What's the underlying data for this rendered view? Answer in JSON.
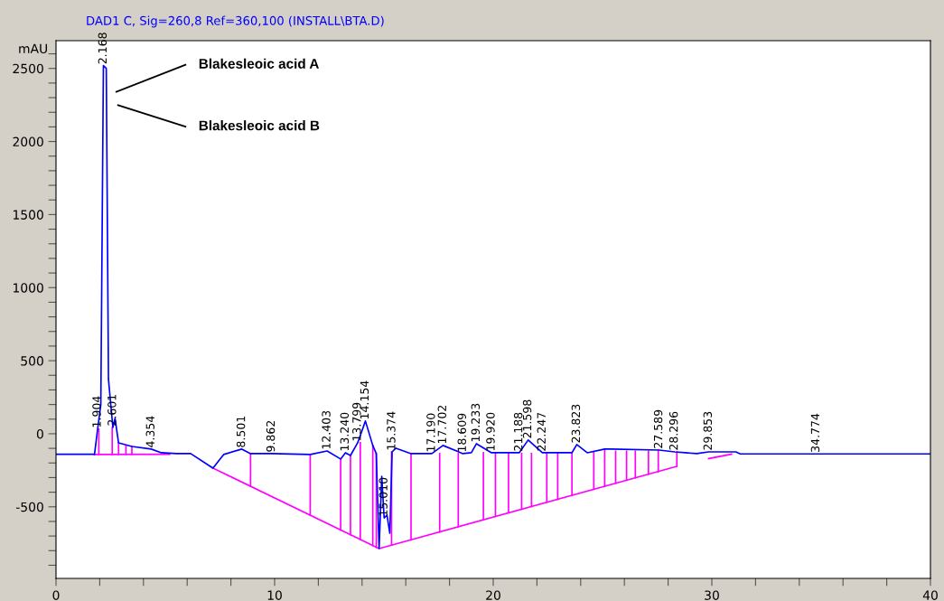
{
  "chart_data": {
    "type": "line",
    "title": "DAD1 C, Sig=260,8 Ref=360,100 (INSTALL\\BTA.D)",
    "ylabel": "mAU",
    "xlim": [
      0,
      40
    ],
    "ylim": [
      -990,
      2690
    ],
    "xticks": [
      0,
      {
        "value": 2,
        "label": null
      },
      {
        "value": 4,
        "label": null
      },
      {
        "value": 6,
        "label": null
      },
      {
        "value": 8,
        "label": null
      },
      10,
      {
        "value": 12,
        "label": null
      },
      {
        "value": 14,
        "label": null
      },
      {
        "value": 16,
        "label": null
      },
      {
        "value": 18,
        "label": null
      },
      20,
      {
        "value": 22,
        "label": null
      },
      {
        "value": 24,
        "label": null
      },
      {
        "value": 26,
        "label": null
      },
      {
        "value": 28,
        "label": null
      },
      30,
      {
        "value": 32,
        "label": null
      },
      {
        "value": 34,
        "label": null
      },
      {
        "value": 36,
        "label": null
      },
      {
        "value": 38,
        "label": null
      },
      40
    ],
    "yticks": [
      {
        "value": -900,
        "label": null
      },
      {
        "value": -800,
        "label": null
      },
      {
        "value": -700,
        "label": null
      },
      {
        "value": -600,
        "label": null
      },
      -500,
      {
        "value": -400,
        "label": null
      },
      {
        "value": -300,
        "label": null
      },
      {
        "value": -200,
        "label": null
      },
      {
        "value": -100,
        "label": null
      },
      0,
      {
        "value": 100,
        "label": null
      },
      {
        "value": 200,
        "label": null
      },
      {
        "value": 300,
        "label": null
      },
      {
        "value": 400,
        "label": null
      },
      500,
      {
        "value": 600,
        "label": null
      },
      {
        "value": 700,
        "label": null
      },
      {
        "value": 800,
        "label": null
      },
      {
        "value": 900,
        "label": null
      },
      1000,
      {
        "value": 1100,
        "label": null
      },
      {
        "value": 1200,
        "label": null
      },
      {
        "value": 1300,
        "label": null
      },
      {
        "value": 1400,
        "label": null
      },
      1500,
      {
        "value": 1600,
        "label": null
      },
      {
        "value": 1700,
        "label": null
      },
      {
        "value": 1800,
        "label": null
      },
      {
        "value": 1900,
        "label": null
      },
      2000,
      {
        "value": 2100,
        "label": null
      },
      {
        "value": 2200,
        "label": null
      },
      {
        "value": 2300,
        "label": null
      },
      {
        "value": 2400,
        "label": null
      },
      2500,
      {
        "value": 2600,
        "label": null
      }
    ],
    "grid": false,
    "legend": false,
    "line_style": "solid",
    "series": [
      {
        "color": "#ff00ff",
        "x": [
          1.76,
          5.2,
          null,
          7.18,
          14.78,
          28.4,
          null,
          29.85,
          30.9
        ],
        "values": [
          -142,
          -140,
          null,
          -235,
          -786,
          -223,
          null,
          -170,
          -140
        ]
      },
      {
        "color": "#ff00ff",
        "x": [
          1.96,
          1.96,
          null,
          2.57,
          2.57,
          null,
          2.86,
          2.86,
          null,
          3.2,
          3.2,
          null,
          3.47,
          3.47,
          null,
          8.9,
          8.9,
          null,
          11.63,
          11.63,
          null,
          13.02,
          13.02,
          null,
          13.47,
          13.47,
          null,
          13.92,
          13.92,
          null,
          14.49,
          14.49,
          null,
          14.65,
          14.65,
          null,
          15.35,
          15.35,
          null,
          16.24,
          16.24,
          null,
          17.55,
          17.55,
          null,
          18.4,
          18.4,
          null,
          19.55,
          19.55,
          null,
          20.1,
          20.1,
          null,
          20.7,
          20.7,
          null,
          21.3,
          21.3,
          null,
          21.75,
          21.75,
          null,
          22.45,
          22.45,
          null,
          22.95,
          22.95,
          null,
          23.6,
          23.6,
          null,
          24.6,
          24.6,
          null,
          25.1,
          25.1,
          null,
          25.6,
          25.6,
          null,
          26.1,
          26.1,
          null,
          26.5,
          26.5,
          null,
          27.1,
          27.1,
          null,
          27.55,
          27.55,
          null,
          28.4,
          28.4
        ],
        "values": [
          31,
          -140,
          null,
          43,
          -140,
          null,
          -62,
          -140,
          null,
          -80,
          -140,
          null,
          -87,
          -140,
          null,
          -136,
          -360,
          null,
          -142,
          -558,
          null,
          -173,
          -658,
          null,
          -149,
          -691,
          null,
          -62,
          -724,
          null,
          -80,
          -765,
          null,
          -136,
          -777,
          null,
          -124,
          -762,
          null,
          -136,
          -726,
          null,
          -136,
          -672,
          null,
          -136,
          -636,
          null,
          -130,
          -589,
          null,
          -136,
          -566,
          null,
          -136,
          -541,
          null,
          -136,
          -517,
          null,
          -136,
          -498,
          null,
          -130,
          -469,
          null,
          -136,
          -449,
          null,
          -136,
          -422,
          null,
          -130,
          -380,
          null,
          -105,
          -360,
          null,
          -120,
          -339,
          null,
          -120,
          -318,
          null,
          -120,
          -302,
          null,
          -120,
          -277,
          null,
          -112,
          -259,
          null,
          -124,
          -223
        ]
      },
      {
        "color": "#0000ff",
        "x": [
          0,
          1.7,
          1.76,
          1.904,
          2.05,
          2.168,
          2.3,
          2.4,
          2.601,
          2.7,
          2.86,
          3.47,
          4.354,
          4.82,
          5.5,
          6.16,
          7.18,
          7.67,
          8.501,
          8.9,
          9.862,
          11.63,
          12.403,
          13.02,
          13.24,
          13.47,
          13.799,
          14.154,
          14.49,
          14.65,
          14.78,
          14.9,
          15.01,
          15.14,
          15.27,
          15.374,
          15.55,
          16.24,
          17.19,
          17.702,
          18.609,
          19.0,
          19.233,
          19.92,
          21.188,
          21.598,
          22.247,
          23.6,
          23.823,
          24.3,
          25.1,
          25.4,
          27.589,
          28.296,
          28.78,
          29.31,
          29.853,
          31.1,
          31.3,
          34.774,
          40
        ],
        "values": [
          -140,
          -140,
          -142,
          31,
          200,
          2519,
          2500,
          371,
          43,
          105,
          -62,
          -87,
          -105,
          -130,
          -136,
          -136,
          -235,
          -142,
          -105,
          -136,
          -136,
          -142,
          -118,
          -173,
          -130,
          -149,
          -62,
          87,
          -80,
          -136,
          -786,
          -291,
          -576,
          -557,
          -681,
          -124,
          -99,
          -136,
          -136,
          -80,
          -136,
          -130,
          -68,
          -130,
          -130,
          -43,
          -130,
          -130,
          -74,
          -130,
          -105,
          -105,
          -112,
          -124,
          -130,
          -136,
          -124,
          -124,
          -138,
          -138,
          -138
        ]
      }
    ],
    "annotations": [
      "Blakesleoic acid A",
      "Blakesleoic acid B",
      {
        "text": "1.904",
        "x": 1.904,
        "y": 31
      },
      {
        "text": "2.168",
        "x": 2.168,
        "y": 2519
      },
      {
        "text": "2.601",
        "x": 2.601,
        "y": 43
      },
      {
        "text": "4.354",
        "x": 4.354,
        "y": -105
      },
      {
        "text": "8.501",
        "x": 8.501,
        "y": -105
      },
      {
        "text": "9.862",
        "x": 9.862,
        "y": -136
      },
      {
        "text": "12.403",
        "x": 12.403,
        "y": -118
      },
      {
        "text": "13.240",
        "x": 13.24,
        "y": -130
      },
      {
        "text": "13.799",
        "x": 13.799,
        "y": -62
      },
      {
        "text": "14.154",
        "x": 14.154,
        "y": 87
      },
      {
        "text": "15.010",
        "x": 15.01,
        "y": -576
      },
      {
        "text": "15.374",
        "x": 15.374,
        "y": -124
      },
      {
        "text": "17.190",
        "x": 17.19,
        "y": -136
      },
      {
        "text": "17.702",
        "x": 17.702,
        "y": -80
      },
      {
        "text": "18.609",
        "x": 18.609,
        "y": -136
      },
      {
        "text": "19.233",
        "x": 19.233,
        "y": -68
      },
      {
        "text": "19.920",
        "x": 19.92,
        "y": -130
      },
      {
        "text": "21.188",
        "x": 21.188,
        "y": -130
      },
      {
        "text": "21.598",
        "x": 21.598,
        "y": -43
      },
      {
        "text": "22.247",
        "x": 22.247,
        "y": -130
      },
      {
        "text": "23.823",
        "x": 23.823,
        "y": -74
      },
      {
        "text": "27.589",
        "x": 27.589,
        "y": -112
      },
      {
        "text": "28.296",
        "x": 28.296,
        "y": -124
      },
      {
        "text": "29.853",
        "x": 29.853,
        "y": -124
      },
      {
        "text": "34.774",
        "x": 34.774,
        "y": -138
      }
    ]
  }
}
